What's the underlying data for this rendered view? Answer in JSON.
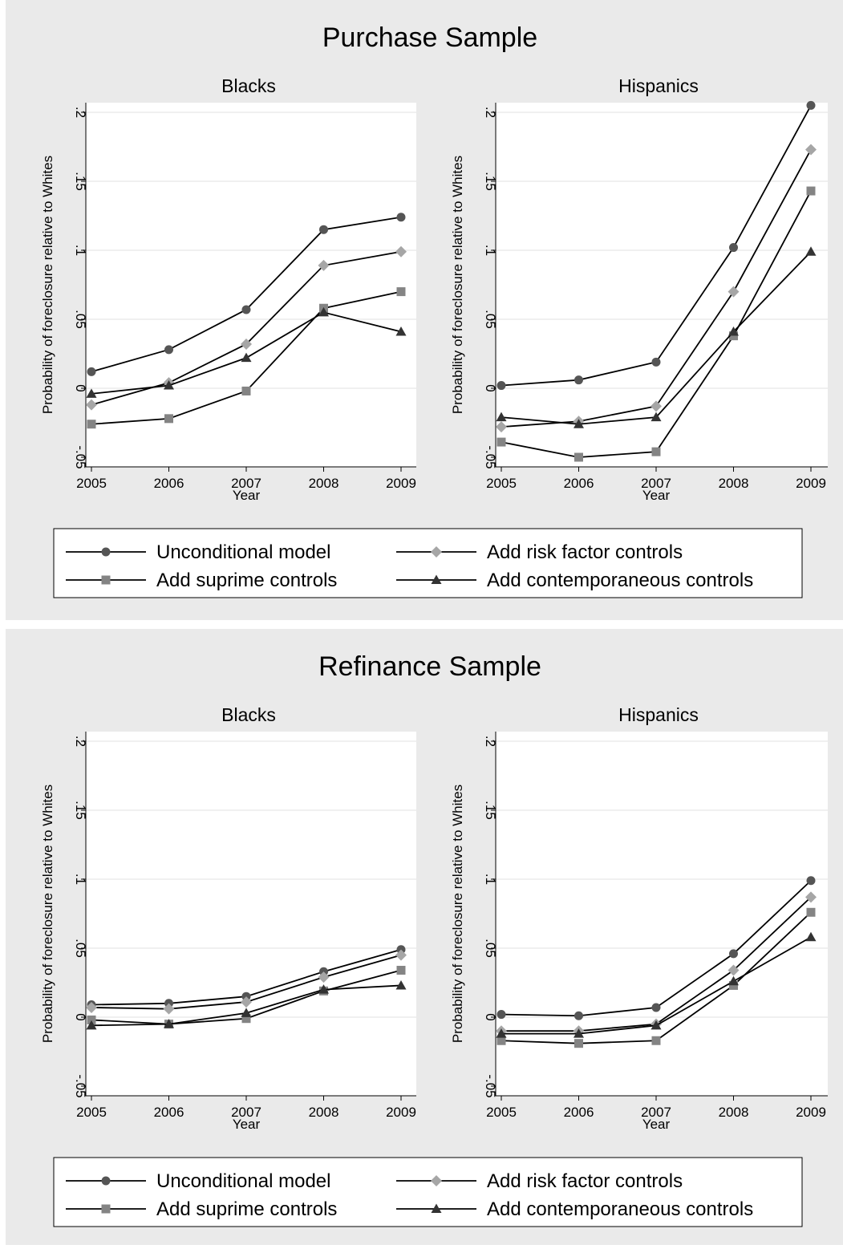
{
  "chart_data": [
    {
      "type": "line",
      "title": "Purchase Sample",
      "legend_position": "bottom",
      "legend": [
        "Unconditional model",
        "Add risk factor controls",
        "Add suprime controls",
        "Add contemporaneous controls"
      ],
      "subplots": [
        {
          "title": "Blacks",
          "xlabel": "Year",
          "ylabel": "Probability of foreclosure relative to Whites",
          "x": [
            2005,
            2006,
            2007,
            2008,
            2009
          ],
          "ylim": [
            -0.05,
            0.2
          ],
          "yticks": [
            -0.05,
            0,
            0.05,
            0.1,
            0.15,
            0.2
          ],
          "ytick_labels": [
            "-.05",
            "0",
            ".05",
            ".1",
            ".15",
            ".2"
          ],
          "grid": true,
          "series": [
            {
              "name": "Unconditional model",
              "marker": "circle",
              "color": "#555555",
              "values": [
                0.012,
                0.028,
                0.057,
                0.115,
                0.124
              ]
            },
            {
              "name": "Add risk factor controls",
              "marker": "diamond",
              "color": "#a6a6a6",
              "values": [
                -0.012,
                0.004,
                0.032,
                0.089,
                0.099
              ]
            },
            {
              "name": "Add suprime controls",
              "marker": "square",
              "color": "#848484",
              "values": [
                -0.026,
                -0.022,
                -0.002,
                0.058,
                0.07
              ]
            },
            {
              "name": "Add contemporaneous controls",
              "marker": "triangle",
              "color": "#333333",
              "values": [
                -0.004,
                0.002,
                0.022,
                0.055,
                0.041
              ]
            }
          ]
        },
        {
          "title": "Hispanics",
          "xlabel": "Year",
          "ylabel": "Probability of foreclosure relative to Whites",
          "x": [
            2005,
            2006,
            2007,
            2008,
            2009
          ],
          "ylim": [
            -0.05,
            0.2
          ],
          "yticks": [
            -0.05,
            0,
            0.05,
            0.1,
            0.15,
            0.2
          ],
          "ytick_labels": [
            "-.05",
            "0",
            ".05",
            ".1",
            ".15",
            ".2"
          ],
          "grid": true,
          "series": [
            {
              "name": "Unconditional model",
              "marker": "circle",
              "color": "#555555",
              "values": [
                0.002,
                0.006,
                0.019,
                0.102,
                0.205
              ]
            },
            {
              "name": "Add risk factor controls",
              "marker": "diamond",
              "color": "#a6a6a6",
              "values": [
                -0.028,
                -0.024,
                -0.013,
                0.07,
                0.173
              ]
            },
            {
              "name": "Add suprime controls",
              "marker": "square",
              "color": "#848484",
              "values": [
                -0.039,
                -0.05,
                -0.046,
                0.038,
                0.143
              ]
            },
            {
              "name": "Add contemporaneous controls",
              "marker": "triangle",
              "color": "#333333",
              "values": [
                -0.021,
                -0.026,
                -0.021,
                0.041,
                0.099
              ]
            }
          ]
        }
      ]
    },
    {
      "type": "line",
      "title": "Refinance Sample",
      "legend_position": "bottom",
      "legend": [
        "Unconditional model",
        "Add risk factor controls",
        "Add suprime controls",
        "Add contemporaneous controls"
      ],
      "subplots": [
        {
          "title": "Blacks",
          "xlabel": "Year",
          "ylabel": "Probability of foreclosure relative to Whites",
          "x": [
            2005,
            2006,
            2007,
            2008,
            2009
          ],
          "ylim": [
            -0.05,
            0.2
          ],
          "yticks": [
            -0.05,
            0,
            0.05,
            0.1,
            0.15,
            0.2
          ],
          "ytick_labels": [
            "-.05",
            "0",
            ".05",
            ".1",
            ".15",
            ".2"
          ],
          "grid": true,
          "series": [
            {
              "name": "Unconditional model",
              "marker": "circle",
              "color": "#555555",
              "values": [
                0.009,
                0.01,
                0.015,
                0.033,
                0.049
              ]
            },
            {
              "name": "Add risk factor controls",
              "marker": "diamond",
              "color": "#a6a6a6",
              "values": [
                0.007,
                0.006,
                0.011,
                0.029,
                0.045
              ]
            },
            {
              "name": "Add suprime controls",
              "marker": "square",
              "color": "#848484",
              "values": [
                -0.002,
                -0.005,
                -0.001,
                0.019,
                0.034
              ]
            },
            {
              "name": "Add contemporaneous controls",
              "marker": "triangle",
              "color": "#333333",
              "values": [
                -0.006,
                -0.005,
                0.003,
                0.02,
                0.023
              ]
            }
          ]
        },
        {
          "title": "Hispanics",
          "xlabel": "Year",
          "ylabel": "Probability of foreclosure relative to Whites",
          "x": [
            2005,
            2006,
            2007,
            2008,
            2009
          ],
          "ylim": [
            -0.05,
            0.2
          ],
          "yticks": [
            -0.05,
            0,
            0.05,
            0.1,
            0.15,
            0.2
          ],
          "ytick_labels": [
            "-.05",
            "0",
            ".05",
            ".1",
            ".15",
            ".2"
          ],
          "grid": true,
          "series": [
            {
              "name": "Unconditional model",
              "marker": "circle",
              "color": "#555555",
              "values": [
                0.002,
                0.001,
                0.007,
                0.046,
                0.099
              ]
            },
            {
              "name": "Add risk factor controls",
              "marker": "diamond",
              "color": "#a6a6a6",
              "values": [
                -0.01,
                -0.01,
                -0.005,
                0.034,
                0.087
              ]
            },
            {
              "name": "Add suprime controls",
              "marker": "square",
              "color": "#848484",
              "values": [
                -0.017,
                -0.019,
                -0.017,
                0.023,
                0.076
              ]
            },
            {
              "name": "Add contemporaneous controls",
              "marker": "triangle",
              "color": "#333333",
              "values": [
                -0.012,
                -0.012,
                -0.006,
                0.026,
                0.058
              ]
            }
          ]
        }
      ]
    }
  ]
}
